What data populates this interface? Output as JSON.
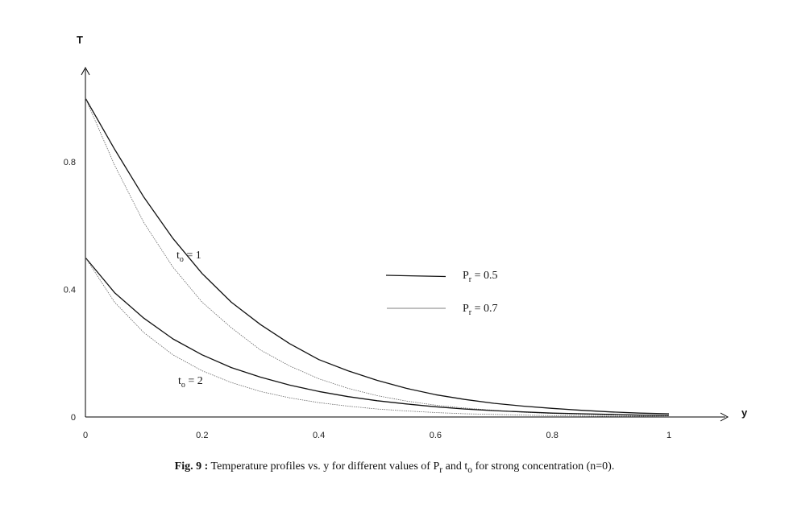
{
  "chart_data": {
    "type": "line",
    "xlabel": "y",
    "ylabel": "T",
    "xlim": [
      0,
      1
    ],
    "ylim": [
      0,
      1.0
    ],
    "x_ticks": [
      "0",
      "0.2",
      "0.4",
      "0.6",
      "0.8",
      "1"
    ],
    "x_tick_values": [
      0,
      0.2,
      0.4,
      0.6,
      0.8,
      1
    ],
    "y_ticks": [
      "0",
      "0.4",
      "0.8"
    ],
    "y_tick_values": [
      0,
      0.4,
      0.8
    ],
    "grid": false,
    "legend_placement": "right-center",
    "legend": [
      {
        "name": "P",
        "sub": "r",
        "value": " = 0.5",
        "style": "solid"
      },
      {
        "name": "P",
        "sub": "r",
        "value": " = 0.7",
        "style": "thin"
      }
    ],
    "annotations": [
      {
        "text": "t",
        "sub": "o",
        "rest": " = 1"
      },
      {
        "text": "t",
        "sub": "o",
        "rest": " = 2"
      }
    ],
    "x": [
      0,
      0.05,
      0.1,
      0.15,
      0.2,
      0.25,
      0.3,
      0.35,
      0.4,
      0.45,
      0.5,
      0.55,
      0.6,
      0.65,
      0.7,
      0.75,
      0.8,
      0.85,
      0.9,
      0.95,
      1.0
    ],
    "series": [
      {
        "group": "t_o = 1",
        "legend_index": 0,
        "values": [
          1.0,
          0.84,
          0.69,
          0.56,
          0.45,
          0.36,
          0.29,
          0.23,
          0.18,
          0.145,
          0.115,
          0.09,
          0.07,
          0.055,
          0.043,
          0.034,
          0.027,
          0.021,
          0.016,
          0.012,
          0.01
        ]
      },
      {
        "group": "t_o = 1",
        "legend_index": 1,
        "values": [
          1.0,
          0.79,
          0.61,
          0.47,
          0.36,
          0.28,
          0.21,
          0.16,
          0.12,
          0.09,
          0.067,
          0.05,
          0.037,
          0.028,
          0.021,
          0.015,
          0.011,
          0.008,
          0.006,
          0.004,
          0.003
        ]
      },
      {
        "group": "t_o = 2",
        "legend_index": 0,
        "values": [
          0.5,
          0.39,
          0.31,
          0.245,
          0.195,
          0.155,
          0.125,
          0.1,
          0.08,
          0.064,
          0.051,
          0.041,
          0.032,
          0.025,
          0.02,
          0.016,
          0.012,
          0.01,
          0.008,
          0.006,
          0.005
        ]
      },
      {
        "group": "t_o = 2",
        "legend_index": 1,
        "values": [
          0.5,
          0.36,
          0.265,
          0.195,
          0.145,
          0.108,
          0.08,
          0.06,
          0.045,
          0.034,
          0.025,
          0.019,
          0.014,
          0.01,
          0.008,
          0.006,
          0.004,
          0.003,
          0.002,
          0.002,
          0.001
        ]
      }
    ]
  },
  "caption": {
    "fig_label": "Fig. 9 :",
    "text_1": " Temperature  profiles vs. y for different values of  P",
    "text_1_sub": "r",
    "text_2": " and t",
    "text_2_sub": "o",
    "text_3": " for strong concentration (n=0)."
  }
}
